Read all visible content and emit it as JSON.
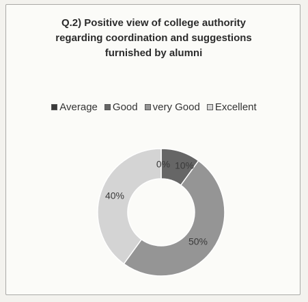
{
  "chart_data": {
    "type": "pie",
    "title_lines": [
      "Q.2) Positive view of college authority",
      "regarding coordination and suggestions",
      "furnished by alumni"
    ],
    "categories": [
      "Average",
      "Good",
      "very Good",
      "Excellent"
    ],
    "values": [
      0,
      10,
      50,
      40
    ],
    "data_labels": [
      "0%",
      "10%",
      "50%",
      "40%"
    ],
    "colors": [
      "#3a3a3a",
      "#666666",
      "#959595",
      "#d4d4d4"
    ],
    "legend_position": "top",
    "style": "doughnut"
  }
}
